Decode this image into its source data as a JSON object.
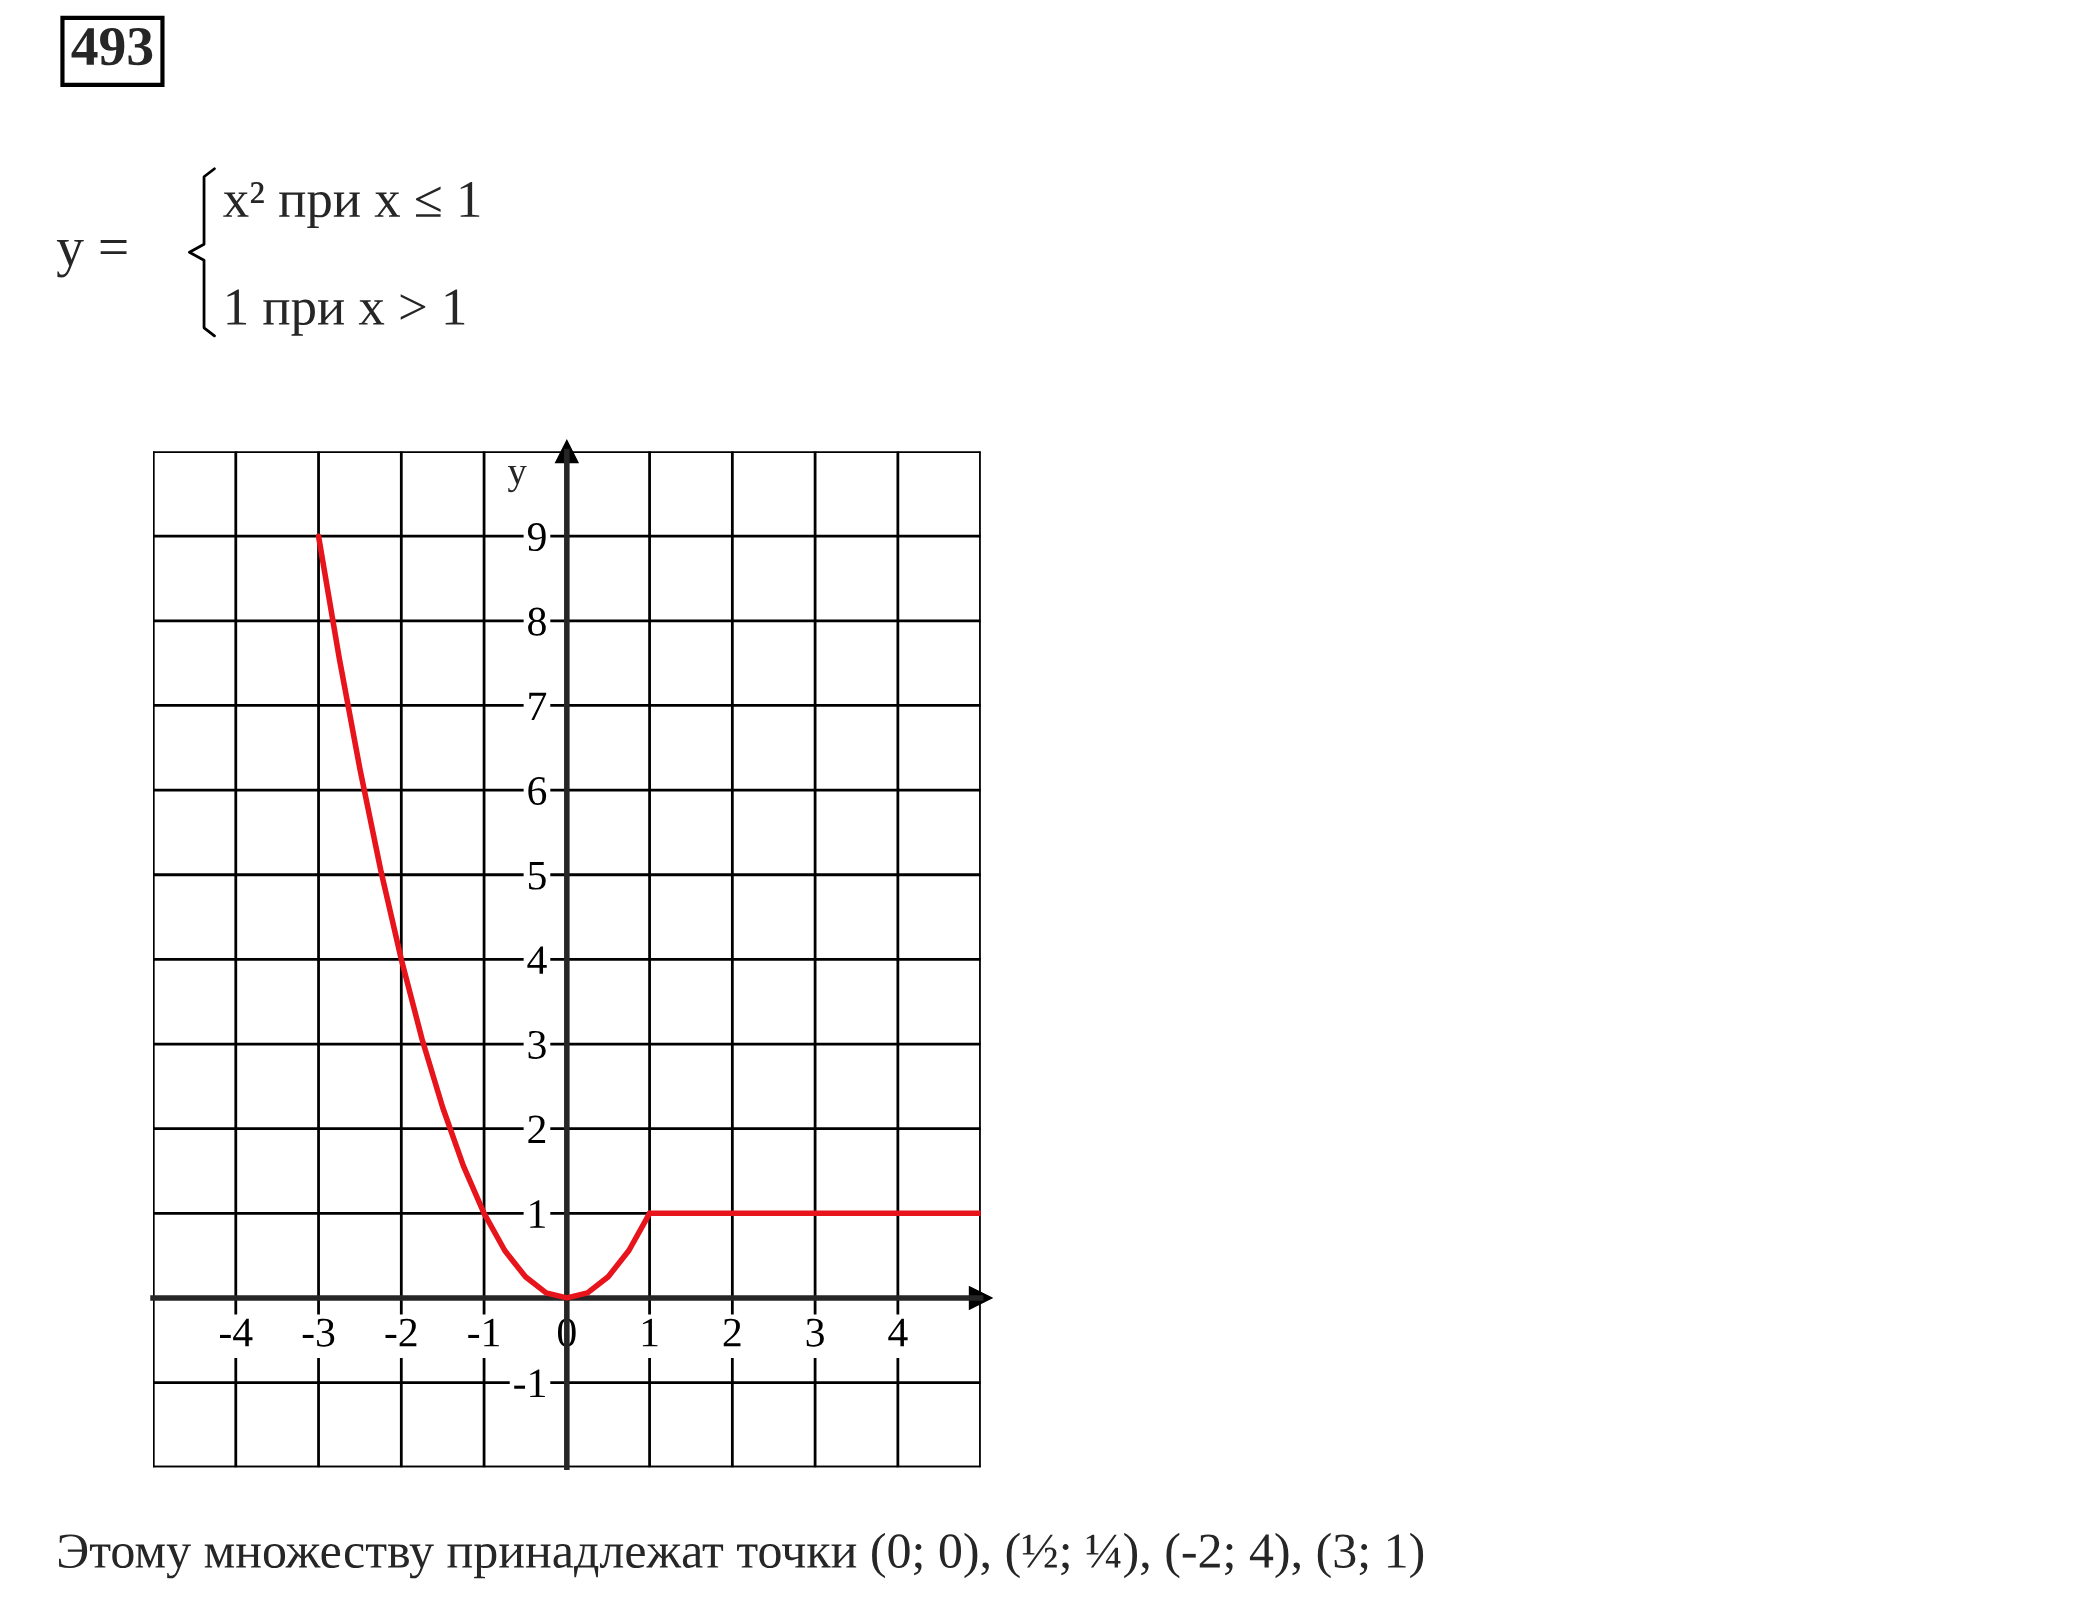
{
  "chart_data": {
    "type": "line",
    "ylabel": "y",
    "annotations": [
      "493",
      "y =",
      "x² при x ≤ 1",
      "1 при x > 1",
      "Этому множеству принадлежат точки (0; 0), (½; ¼), (-2; 4), (3; 1)"
    ],
    "series": [
      {
        "color": "#e8141c",
        "x": [
          -3,
          -2.75,
          -2.5,
          -2.25,
          -2,
          -1.75,
          -1.5,
          -1.25,
          -1,
          -0.75,
          -0.5,
          -0.25,
          0,
          0.25,
          0.5,
          0.75,
          1
        ],
        "values": [
          9,
          7.56,
          6.25,
          5.06,
          4,
          3.06,
          2.25,
          1.56,
          1,
          0.56,
          0.25,
          0.06,
          0,
          0.06,
          0.25,
          0.56,
          1
        ]
      },
      {
        "color": "#e8141c",
        "x": [
          1,
          5
        ],
        "values": [
          1,
          1
        ]
      }
    ],
    "xlim": [
      -5,
      5
    ],
    "ylim": [
      -2,
      10
    ],
    "xticks": [
      {
        "value": -5,
        "label": null
      },
      -4,
      -3,
      -2,
      -1,
      0,
      1,
      2,
      3,
      4,
      {
        "value": 5,
        "label": null
      }
    ],
    "yticks": [
      {
        "value": -2,
        "label": null
      },
      -1,
      {
        "value": 0,
        "label": null
      },
      1,
      2,
      3,
      4,
      5,
      6,
      7,
      8,
      9,
      {
        "value": 10,
        "label": null
      }
    ],
    "grid": true,
    "marker": "none",
    "line_style": "solid"
  }
}
